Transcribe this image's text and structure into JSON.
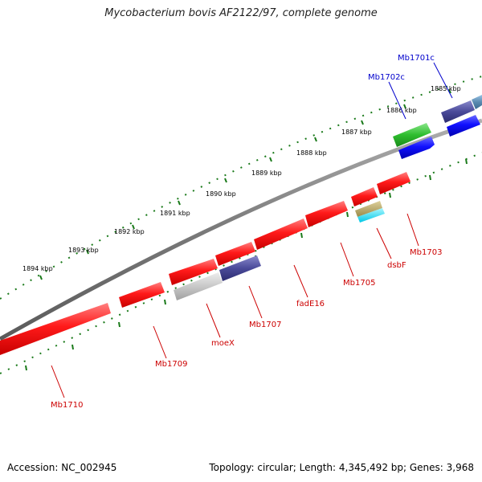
{
  "title": "Mycobacterium bovis AF2122/97, complete genome",
  "footer": {
    "accession": "Accession: NC_002945",
    "topology": "Topology: circular; Length: 4,345,492 bp; Genes: 3,968"
  },
  "kbp_ticks": [
    "1885 kbp",
    "1886 kbp",
    "1887 kbp",
    "1888 kbp",
    "1889 kbp",
    "1890 kbp",
    "1891 kbp",
    "1892 kbp",
    "1893 kbp",
    "1894 kbp"
  ],
  "gene_labels": {
    "Mb1701c": "Mb1701c",
    "Mb1702c": "Mb1702c",
    "Mb1703": "Mb1703",
    "dsbF": "dsbF",
    "Mb1705": "Mb1705",
    "fadE16": "fadE16",
    "Mb1707": "Mb1707",
    "moeX": "moeX",
    "Mb1709": "Mb1709",
    "Mb1710": "Mb1710"
  },
  "colors": {
    "forward_gene": "#ff0000",
    "reverse_gene": "#0000ff",
    "backbone": "#808080",
    "tick": "#1a7a1a",
    "label_forward": "#cc0000",
    "label_reverse": "#0000cc",
    "green_gene": "#2ebd2e",
    "purple_gene": "#4a4a99",
    "grey_gene": "#c0c0c0",
    "teal_gene": "#5a8ab0",
    "olive_gene": "#b0a060",
    "cyan_gene": "#00e5ff"
  }
}
